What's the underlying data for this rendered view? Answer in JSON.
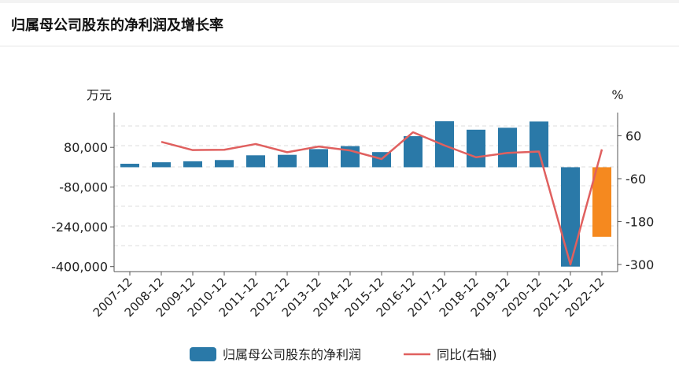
{
  "header": {
    "title": "归属母公司股东的净利润及增长率"
  },
  "chart_data": {
    "type": "bar",
    "title": "",
    "left_unit": "万元",
    "right_unit": "%",
    "categories": [
      "2007-12",
      "2008-12",
      "2009-12",
      "2010-12",
      "2011-12",
      "2012-12",
      "2013-12",
      "2014-12",
      "2015-12",
      "2016-12",
      "2017-12",
      "2018-12",
      "2019-12",
      "2020-12",
      "2021-12",
      "2022-12"
    ],
    "series": [
      {
        "name": "归属母公司股东的净利润",
        "kind": "bar",
        "axis": "left",
        "color": "#2a79a8",
        "values": [
          14000,
          20000,
          24000,
          29000,
          48000,
          50000,
          73000,
          85000,
          61000,
          125000,
          185000,
          151000,
          159000,
          184000,
          -400000,
          -280000
        ],
        "highlight_index": 15,
        "highlight_color": "#f5891f"
      },
      {
        "name": "同比(右轴)",
        "kind": "line",
        "axis": "right",
        "color": "#e0605f",
        "values": [
          null,
          43,
          20,
          21,
          37,
          14,
          30,
          19,
          -5,
          70,
          33,
          0,
          12,
          16,
          -300,
          22
        ]
      }
    ],
    "y_left": {
      "ticks": [
        80000,
        -80000,
        -240000,
        -400000
      ],
      "labels": [
        "80,000",
        "-80,000",
        "-240,000",
        "-400,000"
      ],
      "min": -420000,
      "max": 220000
    },
    "y_right": {
      "ticks": [
        60,
        -60,
        -180,
        -300
      ],
      "labels": [
        "60",
        "-60",
        "-180",
        "-300"
      ],
      "min": -320,
      "max": 125
    },
    "grid": true,
    "legend_position": "bottom"
  }
}
